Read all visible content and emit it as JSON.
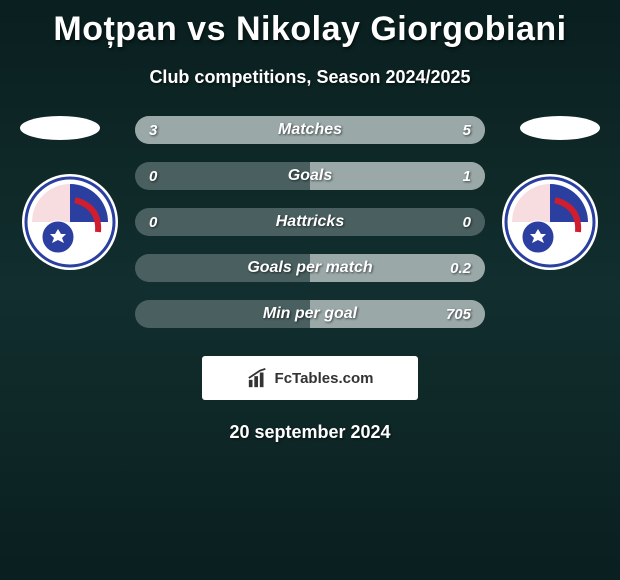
{
  "header": {
    "title": "Moțpan vs Nikolay Giorgobiani",
    "subtitle": "Club competitions, Season 2024/2025"
  },
  "colors": {
    "bar_bg": "#4a6060",
    "bar_fill": "#9aa8a8",
    "background_top": "#0a1f1f",
    "background_mid": "#122e2e",
    "text": "#ffffff",
    "brand_bg": "#ffffff",
    "brand_text": "#333333",
    "badge_primary": "#2a3fa0",
    "badge_secondary": "#d01e2e",
    "badge_ball": "#ffffff"
  },
  "typography": {
    "title_fontsize": 34,
    "subtitle_fontsize": 18,
    "bar_label_fontsize": 16,
    "bar_value_fontsize": 15,
    "date_fontsize": 18
  },
  "bars": [
    {
      "label": "Matches",
      "left": "3",
      "right": "5",
      "left_pct": 37.5,
      "right_pct": 62.5
    },
    {
      "label": "Goals",
      "left": "0",
      "right": "1",
      "left_pct": 0,
      "right_pct": 50
    },
    {
      "label": "Hattricks",
      "left": "0",
      "right": "0",
      "left_pct": 0,
      "right_pct": 0
    },
    {
      "label": "Goals per match",
      "left": "",
      "right": "0.2",
      "left_pct": 0,
      "right_pct": 50
    },
    {
      "label": "Min per goal",
      "left": "",
      "right": "705",
      "left_pct": 0,
      "right_pct": 50
    }
  ],
  "brand": {
    "text": "FcTables.com"
  },
  "footer": {
    "date": "20 september 2024"
  }
}
